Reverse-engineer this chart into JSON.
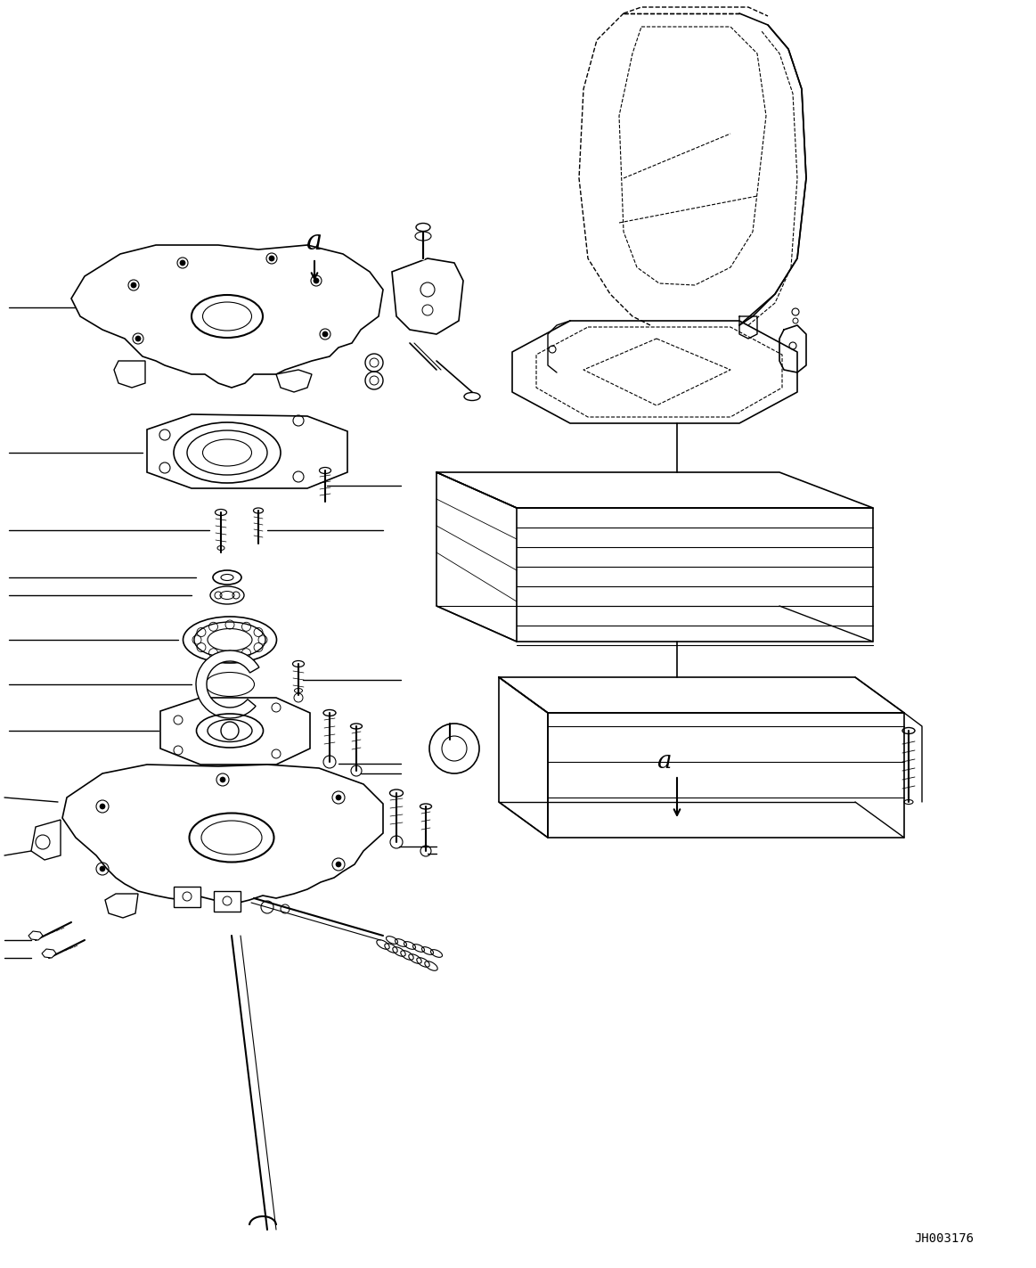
{
  "bg_color": "#ffffff",
  "line_color": "#000000",
  "figure_width": 11.63,
  "figure_height": 14.23,
  "dpi": 100,
  "watermark_text": "JH003176"
}
